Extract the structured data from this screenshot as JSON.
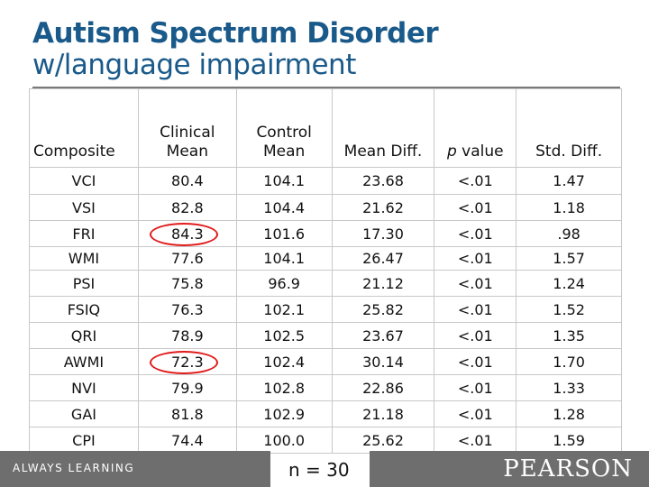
{
  "title": {
    "line1": "Autism Spectrum Disorder",
    "line2": "w/language impairment"
  },
  "table": {
    "headers": {
      "composite": "Composite",
      "clinical": "Clinical Mean",
      "control": "Control Mean",
      "mean_diff": "Mean Diff.",
      "p_value_p": "p",
      "p_value_rest": " value",
      "std_diff": "Std. Diff."
    },
    "rows": [
      {
        "composite": "VCI",
        "clinical": "80.4",
        "control": "104.1",
        "diff": "23.68",
        "p": "<.01",
        "std": "1.47"
      },
      {
        "composite": "VSI",
        "clinical": "82.8",
        "control": "104.4",
        "diff": "21.62",
        "p": "<.01",
        "std": "1.18"
      },
      {
        "composite": "FRI",
        "clinical": "84.3",
        "control": "101.6",
        "diff": "17.30",
        "p": "<.01",
        "std": ".98"
      },
      {
        "composite": "WMI",
        "clinical": "77.6",
        "control": "104.1",
        "diff": "26.47",
        "p": "<.01",
        "std": "1.57"
      },
      {
        "composite": "PSI",
        "clinical": "75.8",
        "control": "96.9",
        "diff": "21.12",
        "p": "<.01",
        "std": "1.24"
      },
      {
        "composite": "FSIQ",
        "clinical": "76.3",
        "control": "102.1",
        "diff": "25.82",
        "p": "<.01",
        "std": "1.52"
      },
      {
        "composite": "QRI",
        "clinical": "78.9",
        "control": "102.5",
        "diff": "23.67",
        "p": "<.01",
        "std": "1.35"
      },
      {
        "composite": "AWMI",
        "clinical": "72.3",
        "control": "102.4",
        "diff": "30.14",
        "p": "<.01",
        "std": "1.70"
      },
      {
        "composite": "NVI",
        "clinical": "79.9",
        "control": "102.8",
        "diff": "22.86",
        "p": "<.01",
        "std": "1.33"
      },
      {
        "composite": "GAI",
        "clinical": "81.8",
        "control": "102.9",
        "diff": "21.18",
        "p": "<.01",
        "std": "1.28"
      },
      {
        "composite": "CPI",
        "clinical": "74.4",
        "control": "100.0",
        "diff": "25.62",
        "p": "<.01",
        "std": "1.59"
      }
    ],
    "circled_rows": [
      "FRI",
      "AWMI"
    ]
  },
  "sample_size": "n = 30",
  "footer": {
    "tagline": "ALWAYS LEARNING",
    "brand": "PEARSON"
  },
  "colors": {
    "title": "#1a5a8a",
    "circle": "#e01b1b",
    "footer_bar": "#6e6e6e"
  }
}
